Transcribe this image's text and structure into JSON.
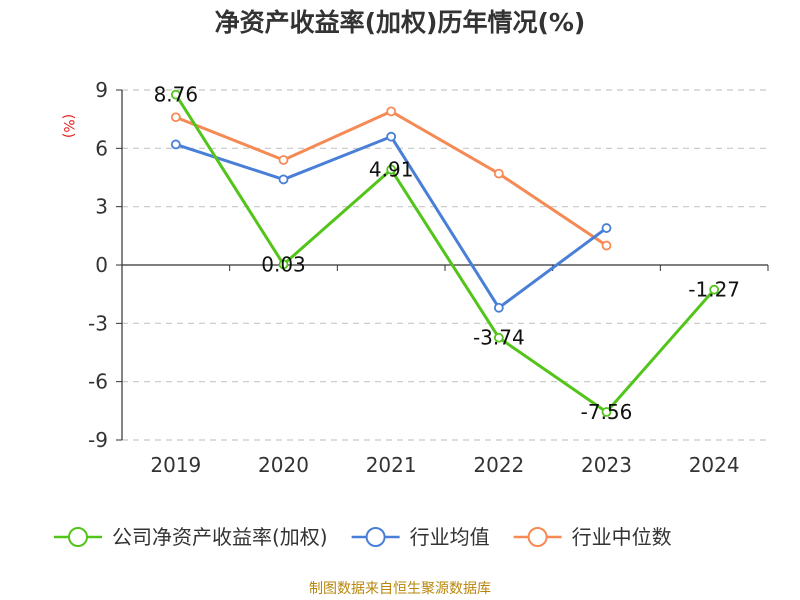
{
  "chart_data": {
    "type": "line",
    "title": "净资产收益率(加权)历年情况(%)",
    "ylabel": "(%)",
    "categories": [
      "2019",
      "2020",
      "2021",
      "2022",
      "2023",
      "2024"
    ],
    "y_ticks": [
      "9",
      "6",
      "3",
      "0",
      "-3",
      "-6",
      "-9"
    ],
    "ylim": [
      -9,
      9
    ],
    "grid": true,
    "legend_position": "bottom",
    "series": [
      {
        "name": "公司净资产收益率(加权)",
        "color": "#52c41a",
        "values": [
          8.76,
          0.03,
          4.91,
          -3.74,
          -7.56,
          -1.27
        ],
        "labels": [
          "8.76",
          "0.03",
          "4.91",
          "-3.74",
          "-7.56",
          "-1.27"
        ]
      },
      {
        "name": "行业均值",
        "color": "#4a7fd8",
        "values": [
          6.2,
          4.4,
          6.6,
          -2.2,
          1.9,
          null
        ]
      },
      {
        "name": "行业中位数",
        "color": "#f58a55",
        "values": [
          7.6,
          5.4,
          7.9,
          4.7,
          1.0,
          null
        ]
      }
    ]
  },
  "source": "制图数据来自恒生聚源数据库"
}
